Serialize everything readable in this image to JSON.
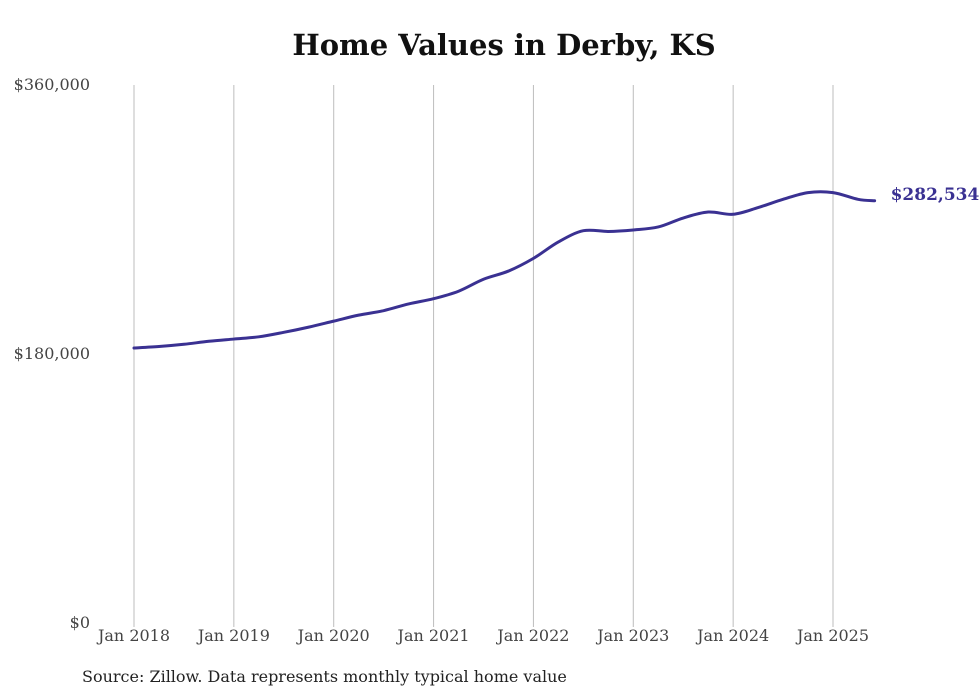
{
  "chart_data": {
    "type": "line",
    "title": "Home Values in Derby, KS",
    "source_note": "Source: Zillow. Data represents monthly typical home value",
    "xlabel": "",
    "ylabel": "",
    "ylim": [
      0,
      360000
    ],
    "y_ticks": [
      {
        "value": 360000,
        "label": "$360,000"
      },
      {
        "value": 180000,
        "label": "$180,000"
      },
      {
        "value": 0,
        "label": "$0"
      }
    ],
    "x_ticks": [
      {
        "value": "2018-01",
        "label": "Jan 2018"
      },
      {
        "value": "2019-01",
        "label": "Jan 2019"
      },
      {
        "value": "2020-01",
        "label": "Jan 2020"
      },
      {
        "value": "2021-01",
        "label": "Jan 2021"
      },
      {
        "value": "2022-01",
        "label": "Jan 2022"
      },
      {
        "value": "2023-01",
        "label": "Jan 2023"
      },
      {
        "value": "2024-01",
        "label": "Jan 2024"
      },
      {
        "value": "2025-01",
        "label": "Jan 2025"
      }
    ],
    "grid": {
      "vertical": true,
      "horizontal": false
    },
    "series": [
      {
        "color": "#3a3192",
        "end_label": "$282,534",
        "points": [
          {
            "x": "2018-01",
            "y": 184000
          },
          {
            "x": "2018-04",
            "y": 185000
          },
          {
            "x": "2018-07",
            "y": 186500
          },
          {
            "x": "2018-10",
            "y": 188500
          },
          {
            "x": "2019-01",
            "y": 190000
          },
          {
            "x": "2019-04",
            "y": 191500
          },
          {
            "x": "2019-07",
            "y": 194500
          },
          {
            "x": "2019-10",
            "y": 198000
          },
          {
            "x": "2020-01",
            "y": 202000
          },
          {
            "x": "2020-04",
            "y": 206000
          },
          {
            "x": "2020-07",
            "y": 209000
          },
          {
            "x": "2020-10",
            "y": 213500
          },
          {
            "x": "2021-01",
            "y": 217000
          },
          {
            "x": "2021-04",
            "y": 222000
          },
          {
            "x": "2021-07",
            "y": 230000
          },
          {
            "x": "2021-10",
            "y": 235500
          },
          {
            "x": "2022-01",
            "y": 244000
          },
          {
            "x": "2022-04",
            "y": 255000
          },
          {
            "x": "2022-07",
            "y": 262500
          },
          {
            "x": "2022-10",
            "y": 262000
          },
          {
            "x": "2023-01",
            "y": 263000
          },
          {
            "x": "2023-04",
            "y": 265000
          },
          {
            "x": "2023-07",
            "y": 271000
          },
          {
            "x": "2023-10",
            "y": 275000
          },
          {
            "x": "2024-01",
            "y": 273500
          },
          {
            "x": "2024-04",
            "y": 278000
          },
          {
            "x": "2024-07",
            "y": 283500
          },
          {
            "x": "2024-10",
            "y": 288000
          },
          {
            "x": "2025-01",
            "y": 288000
          },
          {
            "x": "2025-04",
            "y": 283500
          },
          {
            "x": "2025-06",
            "y": 282534
          }
        ]
      }
    ]
  }
}
